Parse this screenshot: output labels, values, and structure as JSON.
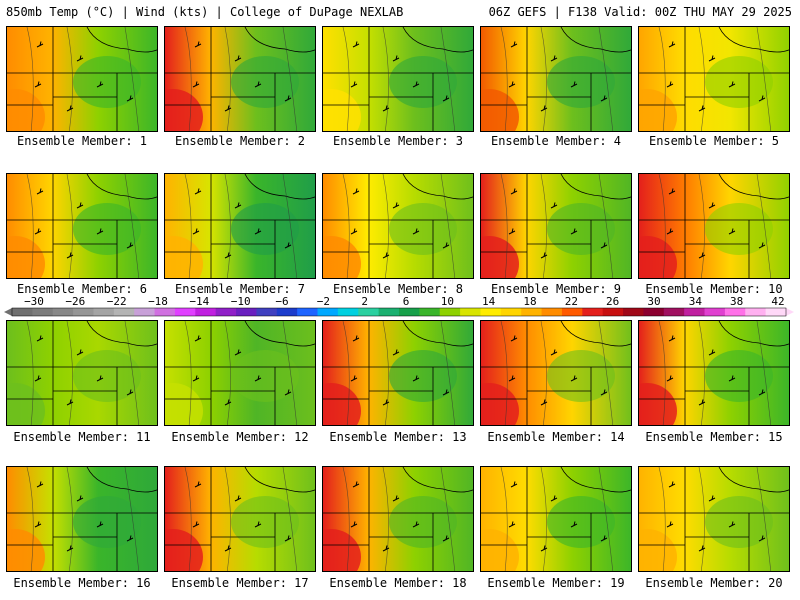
{
  "header": {
    "left": "850mb Temp (°C) | Wind (kts) | College of DuPage NEXLAB",
    "right": "06Z GEFS | F138 Valid: 00Z THU MAY 29 2025"
  },
  "members": [
    {
      "caption": "Ensemble Member: 1",
      "palette": [
        "#ff8c00",
        "#ffb300",
        "#8ed100",
        "#3ab52a"
      ]
    },
    {
      "caption": "Ensemble Member: 2",
      "palette": [
        "#e4201c",
        "#ffb300",
        "#6dbf1d",
        "#2ea83a"
      ]
    },
    {
      "caption": "Ensemble Member: 3",
      "palette": [
        "#ffe000",
        "#c6e000",
        "#6dbf1d",
        "#2ea83a"
      ]
    },
    {
      "caption": "Ensemble Member: 4",
      "palette": [
        "#f25a00",
        "#ffd500",
        "#6dbf1d",
        "#2ea83a"
      ]
    },
    {
      "caption": "Ensemble Member: 5",
      "palette": [
        "#ffa500",
        "#ffdc00",
        "#f2e600",
        "#8ed100"
      ]
    },
    {
      "caption": "Ensemble Member: 6",
      "palette": [
        "#ff8c00",
        "#ffd500",
        "#8ed100",
        "#3ab52a"
      ]
    },
    {
      "caption": "Ensemble Member: 7",
      "palette": [
        "#ffb300",
        "#d8e400",
        "#3ab52a",
        "#1f9d4a"
      ]
    },
    {
      "caption": "Ensemble Member: 8",
      "palette": [
        "#ff8c00",
        "#ffec00",
        "#b7dc00",
        "#6dbf1d"
      ]
    },
    {
      "caption": "Ensemble Member: 9",
      "palette": [
        "#e4201c",
        "#ffd500",
        "#8ed100",
        "#4fb526"
      ]
    },
    {
      "caption": "Ensemble Member: 10",
      "palette": [
        "#e4201c",
        "#ff7a00",
        "#ffd500",
        "#8ed100"
      ]
    },
    {
      "caption": "Ensemble Member: 11",
      "palette": [
        "#6dbf1d",
        "#8ed100",
        "#a9d800",
        "#6dbf1d"
      ]
    },
    {
      "caption": "Ensemble Member: 12",
      "palette": [
        "#c6e000",
        "#8ed100",
        "#4fb526",
        "#6dbf1d"
      ]
    },
    {
      "caption": "Ensemble Member: 13",
      "palette": [
        "#e4201c",
        "#ffb300",
        "#8ed100",
        "#2ea83a"
      ]
    },
    {
      "caption": "Ensemble Member: 14",
      "palette": [
        "#e4201c",
        "#ff8c00",
        "#ffd500",
        "#6dbf1d"
      ]
    },
    {
      "caption": "Ensemble Member: 15",
      "palette": [
        "#e4201c",
        "#ffd500",
        "#8ed100",
        "#3ab52a"
      ]
    },
    {
      "caption": "Ensemble Member: 16",
      "palette": [
        "#ff8c00",
        "#c6e000",
        "#3ab52a",
        "#2ea83a"
      ]
    },
    {
      "caption": "Ensemble Member: 17",
      "palette": [
        "#e4201c",
        "#ffb300",
        "#b7dc00",
        "#6dbf1d"
      ]
    },
    {
      "caption": "Ensemble Member: 18",
      "palette": [
        "#e4201c",
        "#ffb300",
        "#8ed100",
        "#4fb526"
      ]
    },
    {
      "caption": "Ensemble Member: 19",
      "palette": [
        "#ffb300",
        "#ffdc00",
        "#8ed100",
        "#3ab52a"
      ]
    },
    {
      "caption": "Ensemble Member: 20",
      "palette": [
        "#ffb300",
        "#ffdc00",
        "#b7dc00",
        "#6dbf1d"
      ]
    }
  ],
  "colorbar": {
    "labels": [
      "−30",
      "−26",
      "−22",
      "−18",
      "−14",
      "−10",
      "−6",
      "−2",
      "2",
      "6",
      "10",
      "14",
      "18",
      "22",
      "26",
      "30",
      "34",
      "38",
      "42"
    ],
    "colors": [
      "#707070",
      "#7c7c7c",
      "#888888",
      "#969696",
      "#a4a4a4",
      "#b4b4b4",
      "#c8a0d8",
      "#d070e0",
      "#e040ff",
      "#c020e0",
      "#9020c8",
      "#6a20c0",
      "#4040c0",
      "#1c3ccc",
      "#1e64ff",
      "#00a8ff",
      "#00d0e0",
      "#2ad0a0",
      "#1bb070",
      "#17a04a",
      "#3ab52a",
      "#8ed100",
      "#d8e400",
      "#ffec00",
      "#ffd500",
      "#ffb300",
      "#ff8c00",
      "#ff5a00",
      "#e4201c",
      "#c81010",
      "#a00818",
      "#8c0030",
      "#a01060",
      "#c020a0",
      "#e040d0",
      "#ff70e8",
      "#ffb0f0",
      "#ffd8f8"
    ]
  }
}
